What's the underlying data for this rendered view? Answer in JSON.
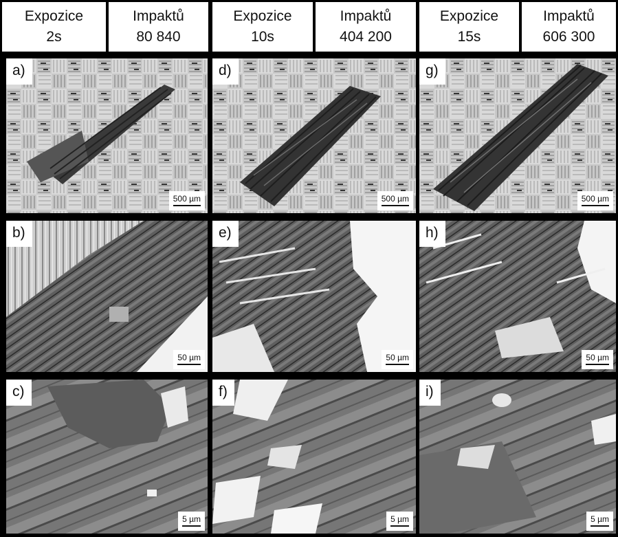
{
  "header": [
    {
      "label": "Expozice\n2s"
    },
    {
      "label": "Impaktů\n80 840"
    },
    {
      "label": "Expozice\n10s"
    },
    {
      "label": "Impaktů\n404 200"
    },
    {
      "label": "Expozice\n15s"
    },
    {
      "label": "Impaktů\n606 300"
    }
  ],
  "panels": [
    {
      "id": "a",
      "label": "a)",
      "scale": "500 µm",
      "image": "sem-micrograph-woven-surface-2s"
    },
    {
      "id": "d",
      "label": "d)",
      "scale": "500 µm",
      "image": "sem-micrograph-woven-surface-10s"
    },
    {
      "id": "g",
      "label": "g)",
      "scale": "500 µm",
      "image": "sem-micrograph-woven-surface-15s"
    },
    {
      "id": "b",
      "label": "b)",
      "scale": "50 µm",
      "image": "sem-micrograph-fibers-2s"
    },
    {
      "id": "e",
      "label": "e)",
      "scale": "50 µm",
      "image": "sem-micrograph-fibers-10s"
    },
    {
      "id": "h",
      "label": "h)",
      "scale": "50 µm",
      "image": "sem-micrograph-fibers-15s"
    },
    {
      "id": "c",
      "label": "c)",
      "scale": "5 µm",
      "image": "sem-micrograph-fiber-detail-2s"
    },
    {
      "id": "f",
      "label": "f)",
      "scale": "5 µm",
      "image": "sem-micrograph-fiber-detail-10s"
    },
    {
      "id": "i",
      "label": "i)",
      "scale": "5 µm",
      "image": "sem-micrograph-fiber-detail-15s"
    }
  ]
}
